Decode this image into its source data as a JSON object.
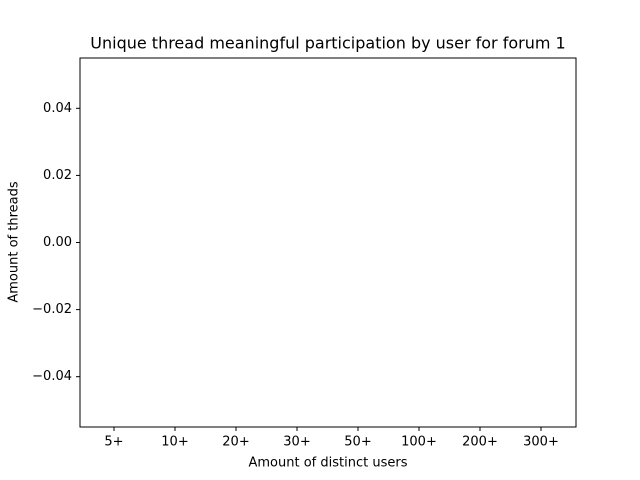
{
  "chart_data": {
    "type": "bar",
    "title": "Unique thread meaningful participation by user for forum 1",
    "x_label": "Amount of distinct users",
    "y_label": "Amount of threads",
    "categories": [
      "5+",
      "10+",
      "20+",
      "30+",
      "50+",
      "100+",
      "200+",
      "300+"
    ],
    "values": [
      0,
      0,
      0,
      0,
      0,
      0,
      0,
      0
    ],
    "color": "#1f77b4",
    "ylim": [
      -0.055,
      0.055
    ],
    "yticks": [
      {
        "value": -0.04,
        "label": "−0.04"
      },
      {
        "value": -0.02,
        "label": "−0.02"
      },
      {
        "value": 0,
        "label": "0.00"
      },
      0.02,
      0.04
    ],
    "grid": false
  }
}
